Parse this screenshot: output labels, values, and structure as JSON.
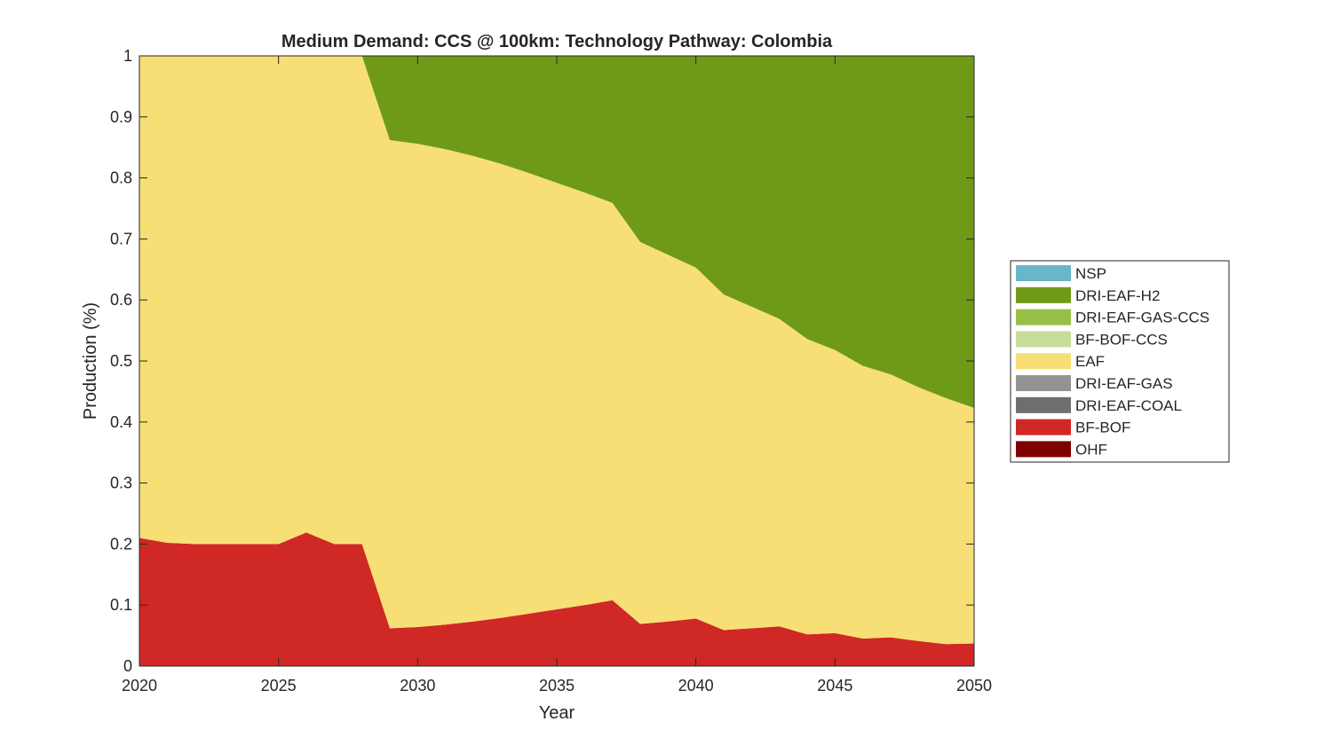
{
  "chart_data": {
    "type": "area",
    "title": "Medium Demand: CCS @ 100km: Technology Pathway: Colombia",
    "xlabel": "Year",
    "ylabel": "Production (%)",
    "xlim": [
      2020,
      2050
    ],
    "ylim": [
      0,
      1
    ],
    "xticks": [
      2020,
      2025,
      2030,
      2035,
      2040,
      2045,
      2050
    ],
    "yticks": [
      0,
      0.1,
      0.2,
      0.3,
      0.4,
      0.5,
      0.6,
      0.7,
      0.8,
      0.9,
      1
    ],
    "legend_position": "right",
    "x": [
      2020,
      2021,
      2022,
      2023,
      2024,
      2025,
      2026,
      2027,
      2028,
      2029,
      2030,
      2031,
      2032,
      2033,
      2034,
      2035,
      2036,
      2037,
      2038,
      2039,
      2040,
      2041,
      2042,
      2043,
      2044,
      2045,
      2046,
      2047,
      2048,
      2049,
      2050
    ],
    "series": [
      {
        "name": "OHF",
        "color": "#7f0000",
        "values": [
          0,
          0,
          0,
          0,
          0,
          0,
          0,
          0,
          0,
          0,
          0,
          0,
          0,
          0,
          0,
          0,
          0,
          0,
          0,
          0,
          0,
          0,
          0,
          0,
          0,
          0,
          0,
          0,
          0,
          0,
          0
        ]
      },
      {
        "name": "BF-BOF",
        "color": "#d02824",
        "values": [
          0.21,
          0.202,
          0.2,
          0.2,
          0.2,
          0.2,
          0.219,
          0.2,
          0.2,
          0.062,
          0.064,
          0.068,
          0.073,
          0.079,
          0.086,
          0.093,
          0.1,
          0.108,
          0.069,
          0.073,
          0.078,
          0.059,
          0.062,
          0.065,
          0.052,
          0.054,
          0.045,
          0.047,
          0.041,
          0.036,
          0.037
        ]
      },
      {
        "name": "DRI-EAF-COAL",
        "color": "#6e6e6e",
        "values": [
          0,
          0,
          0,
          0,
          0,
          0,
          0,
          0,
          0,
          0,
          0,
          0,
          0,
          0,
          0,
          0,
          0,
          0,
          0,
          0,
          0,
          0,
          0,
          0,
          0,
          0,
          0,
          0,
          0,
          0,
          0
        ]
      },
      {
        "name": "DRI-EAF-GAS",
        "color": "#939393",
        "values": [
          0,
          0,
          0,
          0,
          0,
          0,
          0,
          0,
          0,
          0,
          0,
          0,
          0,
          0,
          0,
          0,
          0,
          0,
          0,
          0,
          0,
          0,
          0,
          0,
          0,
          0,
          0,
          0,
          0,
          0,
          0
        ]
      },
      {
        "name": "EAF",
        "color": "#f7df76",
        "values": [
          0.79,
          0.798,
          0.8,
          0.8,
          0.8,
          0.8,
          0.781,
          0.8,
          0.8,
          0.8,
          0.792,
          0.779,
          0.763,
          0.744,
          0.722,
          0.699,
          0.676,
          0.651,
          0.626,
          0.601,
          0.575,
          0.55,
          0.527,
          0.504,
          0.484,
          0.464,
          0.447,
          0.431,
          0.416,
          0.403,
          0.386
        ]
      },
      {
        "name": "BF-BOF-CCS",
        "color": "#c7dc98",
        "values": [
          0,
          0,
          0,
          0,
          0,
          0,
          0,
          0,
          0,
          0,
          0,
          0,
          0,
          0,
          0,
          0,
          0,
          0,
          0,
          0,
          0,
          0,
          0,
          0,
          0,
          0,
          0,
          0,
          0,
          0,
          0
        ]
      },
      {
        "name": "DRI-EAF-GAS-CCS",
        "color": "#98bf48",
        "values": [
          0,
          0,
          0,
          0,
          0,
          0,
          0,
          0,
          0,
          0,
          0,
          0,
          0,
          0,
          0,
          0,
          0,
          0,
          0,
          0,
          0,
          0,
          0,
          0,
          0,
          0,
          0,
          0,
          0,
          0,
          0
        ]
      },
      {
        "name": "DRI-EAF-H2",
        "color": "#6f9a18",
        "values": [
          0,
          0,
          0,
          0,
          0,
          0,
          0,
          0,
          0,
          0.138,
          0.144,
          0.153,
          0.164,
          0.177,
          0.192,
          0.208,
          0.224,
          0.241,
          0.305,
          0.326,
          0.347,
          0.391,
          0.411,
          0.431,
          0.464,
          0.482,
          0.508,
          0.522,
          0.543,
          0.561,
          0.577
        ]
      },
      {
        "name": "NSP",
        "color": "#68b6c8",
        "values": [
          0,
          0,
          0,
          0,
          0,
          0,
          0,
          0,
          0,
          0,
          0,
          0,
          0,
          0,
          0,
          0,
          0,
          0,
          0,
          0,
          0,
          0,
          0,
          0,
          0,
          0,
          0,
          0,
          0,
          0,
          0
        ]
      }
    ],
    "legend": [
      "NSP",
      "DRI-EAF-H2",
      "DRI-EAF-GAS-CCS",
      "BF-BOF-CCS",
      "EAF",
      "DRI-EAF-GAS",
      "DRI-EAF-COAL",
      "BF-BOF",
      "OHF"
    ]
  }
}
